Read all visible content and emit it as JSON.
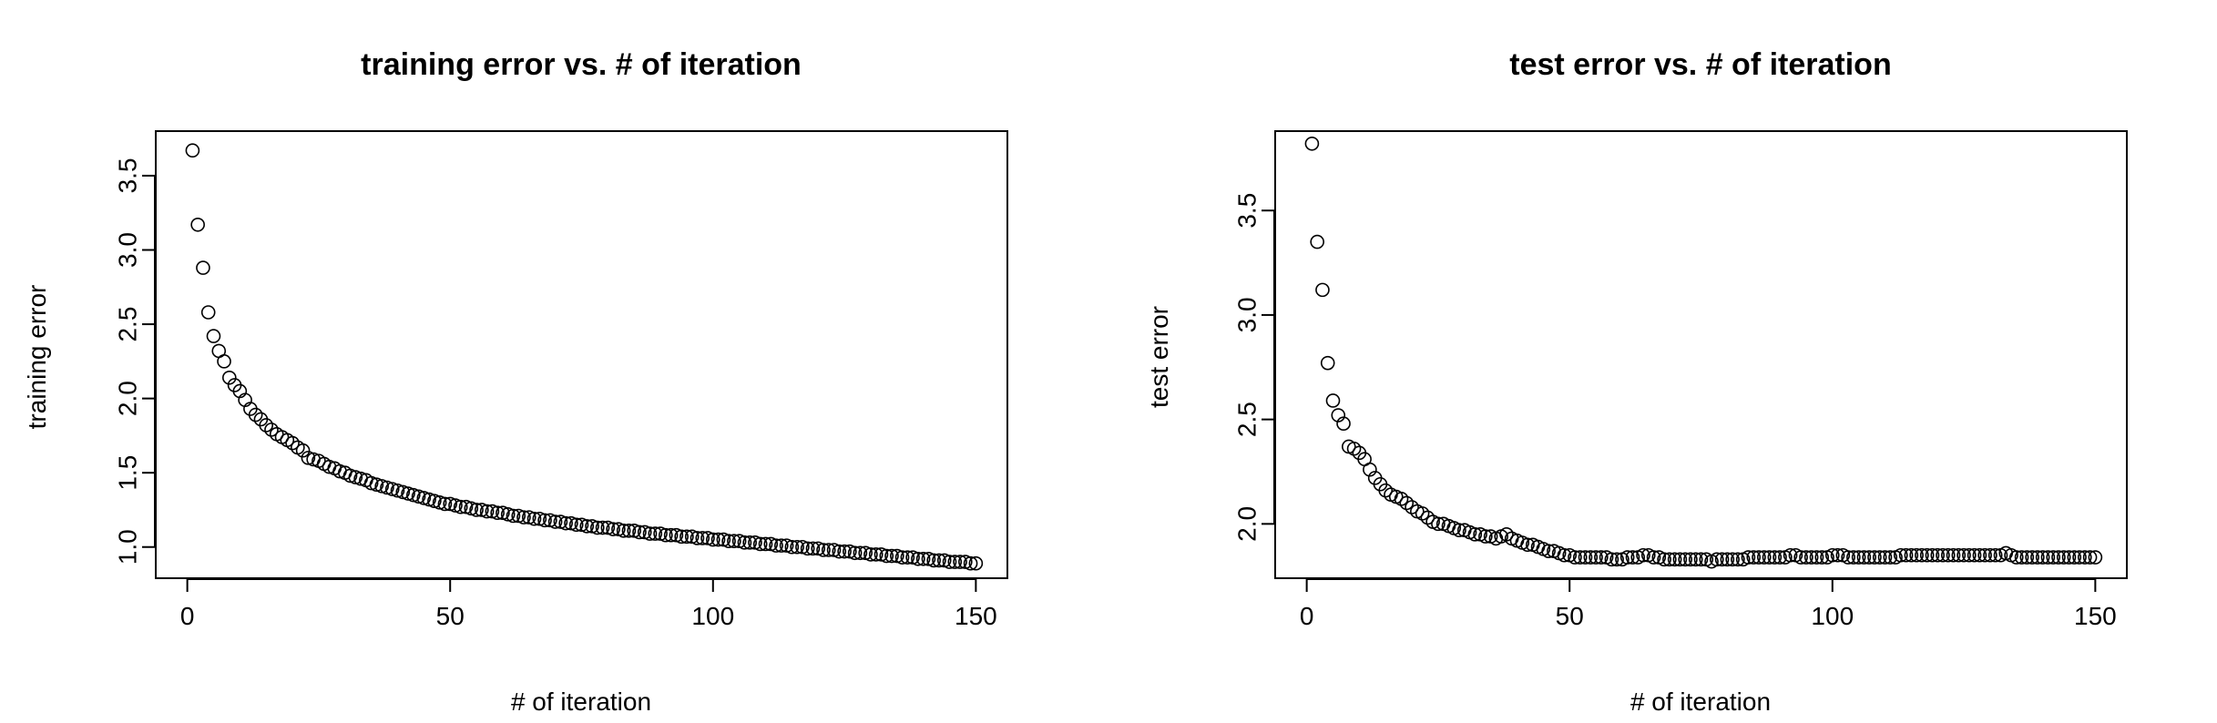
{
  "chart_data": [
    {
      "type": "scatter",
      "title": "training error vs. # of iteration",
      "xlabel": "# of iteration",
      "ylabel": "training error",
      "xlim": [
        -6,
        156
      ],
      "ylim": [
        0.79,
        3.8
      ],
      "x_ticks": [
        0,
        50,
        100,
        150
      ],
      "y_ticks": [
        1.0,
        1.5,
        2.0,
        2.5,
        3.0,
        3.5
      ],
      "y_tick_labels": [
        "1.0",
        "1.5",
        "2.0",
        "2.5",
        "3.0",
        "3.5"
      ],
      "x": [
        1,
        2,
        3,
        4,
        5,
        6,
        7,
        8,
        9,
        10,
        11,
        12,
        13,
        14,
        15,
        16,
        17,
        18,
        19,
        20,
        21,
        22,
        23,
        24,
        25,
        26,
        27,
        28,
        29,
        30,
        31,
        32,
        33,
        34,
        35,
        36,
        37,
        38,
        39,
        40,
        41,
        42,
        43,
        44,
        45,
        46,
        47,
        48,
        49,
        50,
        51,
        52,
        53,
        54,
        55,
        56,
        57,
        58,
        59,
        60,
        61,
        62,
        63,
        64,
        65,
        66,
        67,
        68,
        69,
        70,
        71,
        72,
        73,
        74,
        75,
        76,
        77,
        78,
        79,
        80,
        81,
        82,
        83,
        84,
        85,
        86,
        87,
        88,
        89,
        90,
        91,
        92,
        93,
        94,
        95,
        96,
        97,
        98,
        99,
        100,
        101,
        102,
        103,
        104,
        105,
        106,
        107,
        108,
        109,
        110,
        111,
        112,
        113,
        114,
        115,
        116,
        117,
        118,
        119,
        120,
        121,
        122,
        123,
        124,
        125,
        126,
        127,
        128,
        129,
        130,
        131,
        132,
        133,
        134,
        135,
        136,
        137,
        138,
        139,
        140,
        141,
        142,
        143,
        144,
        145,
        146,
        147,
        148,
        149,
        150
      ],
      "y": [
        3.67,
        3.17,
        2.88,
        2.58,
        2.42,
        2.32,
        2.25,
        2.14,
        2.09,
        2.05,
        1.99,
        1.93,
        1.89,
        1.86,
        1.82,
        1.79,
        1.76,
        1.74,
        1.72,
        1.7,
        1.67,
        1.65,
        1.6,
        1.59,
        1.58,
        1.56,
        1.54,
        1.53,
        1.51,
        1.5,
        1.48,
        1.47,
        1.46,
        1.45,
        1.43,
        1.42,
        1.41,
        1.4,
        1.39,
        1.38,
        1.37,
        1.36,
        1.35,
        1.34,
        1.33,
        1.32,
        1.31,
        1.3,
        1.29,
        1.29,
        1.28,
        1.27,
        1.27,
        1.26,
        1.25,
        1.25,
        1.24,
        1.24,
        1.23,
        1.23,
        1.22,
        1.21,
        1.21,
        1.2,
        1.2,
        1.19,
        1.19,
        1.18,
        1.18,
        1.17,
        1.17,
        1.16,
        1.16,
        1.15,
        1.15,
        1.14,
        1.14,
        1.13,
        1.13,
        1.13,
        1.12,
        1.12,
        1.11,
        1.11,
        1.11,
        1.1,
        1.1,
        1.09,
        1.09,
        1.09,
        1.08,
        1.08,
        1.08,
        1.07,
        1.07,
        1.07,
        1.06,
        1.06,
        1.06,
        1.05,
        1.05,
        1.05,
        1.04,
        1.04,
        1.04,
        1.03,
        1.03,
        1.03,
        1.02,
        1.02,
        1.02,
        1.01,
        1.01,
        1.01,
        1.0,
        1.0,
        1.0,
        0.99,
        0.99,
        0.99,
        0.98,
        0.98,
        0.98,
        0.97,
        0.97,
        0.97,
        0.96,
        0.96,
        0.96,
        0.95,
        0.95,
        0.95,
        0.94,
        0.94,
        0.94,
        0.93,
        0.93,
        0.93,
        0.92,
        0.92,
        0.92,
        0.91,
        0.91,
        0.91,
        0.9,
        0.9,
        0.9,
        0.9,
        0.89,
        0.89
      ],
      "grid": false,
      "marker": "open-circle"
    },
    {
      "type": "scatter",
      "title": "test error vs. # of iteration",
      "xlabel": "# of iteration",
      "ylabel": "test error",
      "xlim": [
        -6,
        156
      ],
      "ylim": [
        1.74,
        3.88
      ],
      "x_ticks": [
        0,
        50,
        100,
        150
      ],
      "y_ticks": [
        2.0,
        2.5,
        3.0,
        3.5
      ],
      "y_tick_labels": [
        "2.0",
        "2.5",
        "3.0",
        "3.5"
      ],
      "x": [
        1,
        2,
        3,
        4,
        5,
        6,
        7,
        8,
        9,
        10,
        11,
        12,
        13,
        14,
        15,
        16,
        17,
        18,
        19,
        20,
        21,
        22,
        23,
        24,
        25,
        26,
        27,
        28,
        29,
        30,
        31,
        32,
        33,
        34,
        35,
        36,
        37,
        38,
        39,
        40,
        41,
        42,
        43,
        44,
        45,
        46,
        47,
        48,
        49,
        50,
        51,
        52,
        53,
        54,
        55,
        56,
        57,
        58,
        59,
        60,
        61,
        62,
        63,
        64,
        65,
        66,
        67,
        68,
        69,
        70,
        71,
        72,
        73,
        74,
        75,
        76,
        77,
        78,
        79,
        80,
        81,
        82,
        83,
        84,
        85,
        86,
        87,
        88,
        89,
        90,
        91,
        92,
        93,
        94,
        95,
        96,
        97,
        98,
        99,
        100,
        101,
        102,
        103,
        104,
        105,
        106,
        107,
        108,
        109,
        110,
        111,
        112,
        113,
        114,
        115,
        116,
        117,
        118,
        119,
        120,
        121,
        122,
        123,
        124,
        125,
        126,
        127,
        128,
        129,
        130,
        131,
        132,
        133,
        134,
        135,
        136,
        137,
        138,
        139,
        140,
        141,
        142,
        143,
        144,
        145,
        146,
        147,
        148,
        149,
        150
      ],
      "y": [
        3.82,
        3.35,
        3.12,
        2.77,
        2.59,
        2.52,
        2.48,
        2.37,
        2.36,
        2.34,
        2.31,
        2.26,
        2.22,
        2.19,
        2.16,
        2.14,
        2.13,
        2.12,
        2.1,
        2.08,
        2.06,
        2.05,
        2.03,
        2.01,
        2.0,
        2.0,
        1.99,
        1.98,
        1.97,
        1.97,
        1.96,
        1.95,
        1.95,
        1.94,
        1.94,
        1.93,
        1.94,
        1.95,
        1.93,
        1.92,
        1.91,
        1.9,
        1.9,
        1.89,
        1.88,
        1.87,
        1.87,
        1.86,
        1.85,
        1.85,
        1.84,
        1.84,
        1.84,
        1.84,
        1.84,
        1.84,
        1.84,
        1.83,
        1.83,
        1.83,
        1.84,
        1.84,
        1.84,
        1.85,
        1.85,
        1.84,
        1.84,
        1.83,
        1.83,
        1.83,
        1.83,
        1.83,
        1.83,
        1.83,
        1.83,
        1.83,
        1.82,
        1.83,
        1.83,
        1.83,
        1.83,
        1.83,
        1.83,
        1.84,
        1.84,
        1.84,
        1.84,
        1.84,
        1.84,
        1.84,
        1.84,
        1.85,
        1.85,
        1.84,
        1.84,
        1.84,
        1.84,
        1.84,
        1.84,
        1.85,
        1.85,
        1.85,
        1.84,
        1.84,
        1.84,
        1.84,
        1.84,
        1.84,
        1.84,
        1.84,
        1.84,
        1.84,
        1.85,
        1.85,
        1.85,
        1.85,
        1.85,
        1.85,
        1.85,
        1.85,
        1.85,
        1.85,
        1.85,
        1.85,
        1.85,
        1.85,
        1.85,
        1.85,
        1.85,
        1.85,
        1.85,
        1.85,
        1.86,
        1.85,
        1.84,
        1.84,
        1.84,
        1.84,
        1.84,
        1.84,
        1.84,
        1.84,
        1.84,
        1.84,
        1.84,
        1.84,
        1.84,
        1.84,
        1.84,
        1.84
      ],
      "grid": false,
      "marker": "open-circle"
    }
  ]
}
